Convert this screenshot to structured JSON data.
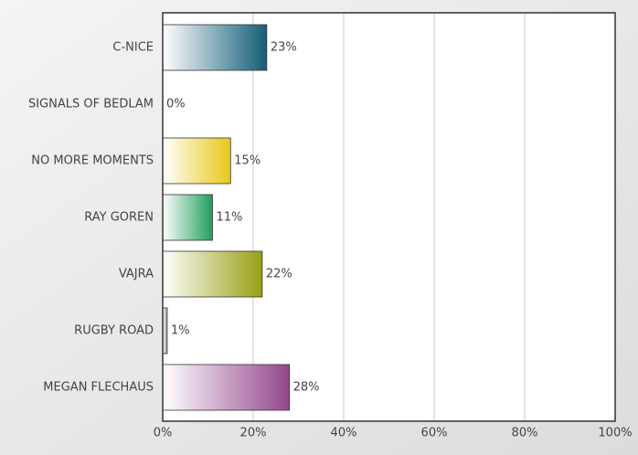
{
  "chart_data": {
    "type": "bar",
    "orientation": "horizontal",
    "categories": [
      "C-NICE",
      "SIGNALS OF BEDLAM",
      "NO MORE MOMENTS",
      "RAY GOREN",
      "VAJRA",
      "RUGBY ROAD",
      "MEGAN FLECHAUS"
    ],
    "values": [
      23,
      0,
      15,
      11,
      22,
      1,
      28
    ],
    "value_labels": [
      "23%",
      "0%",
      "15%",
      "11%",
      "22%",
      "1%",
      "28%"
    ],
    "colors": [
      "#145e78",
      "#c0504d",
      "#e8c818",
      "#1f9e5c",
      "#97a012",
      "#9a9a88",
      "#93468c"
    ],
    "xlim": [
      0,
      100
    ],
    "xticks": [
      {
        "value": 0,
        "label": "0%"
      },
      {
        "value": 20,
        "label": "20%"
      },
      {
        "value": 40,
        "label": "40%"
      },
      {
        "value": 60,
        "label": "60%"
      },
      {
        "value": 80,
        "label": "80%"
      },
      {
        "value": 100,
        "label": "100%"
      }
    ],
    "grid": true
  }
}
